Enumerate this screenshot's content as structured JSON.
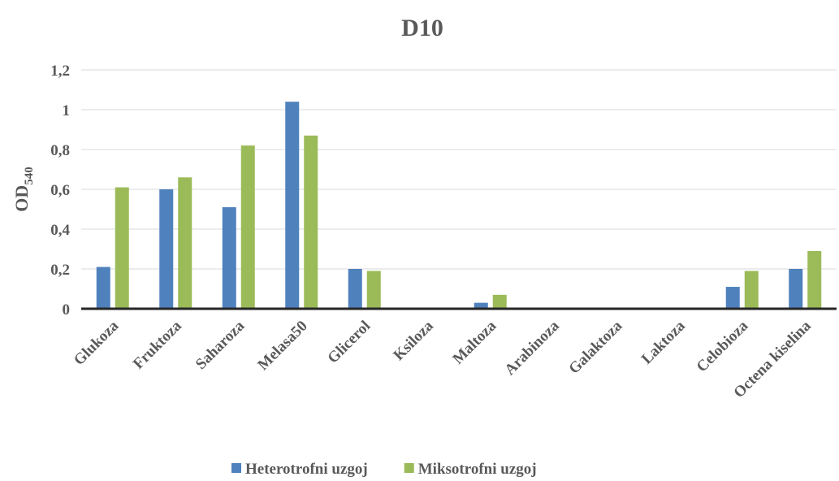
{
  "chart_data": {
    "type": "bar",
    "title": "D10",
    "y_label": "OD",
    "y_label_sub": "540",
    "categories": [
      "Glukoza",
      "Fruktoza",
      "Saharoza",
      "Melasa50",
      "Glicerol",
      "Ksiloza",
      "Maltoza",
      "Arabinoza",
      "Galaktoza",
      "Laktoza",
      "Celobioza",
      "Octena kiselina"
    ],
    "series": [
      {
        "name": "Heterotrofni uzgoj",
        "color": "#4f81bd",
        "values": [
          0.21,
          0.6,
          0.51,
          1.04,
          0.2,
          0,
          0.03,
          0,
          0,
          0,
          0.11,
          0.2
        ]
      },
      {
        "name": "Miksotrofni uzgoj",
        "color": "#9bbb59",
        "values": [
          0.61,
          0.66,
          0.82,
          0.87,
          0.19,
          0,
          0.07,
          0,
          0,
          0,
          0.19,
          0.29
        ]
      }
    ],
    "ylim": [
      0,
      1.2
    ],
    "yticks": [
      0,
      {
        "value": 0.2,
        "label": "0,2"
      },
      {
        "value": 0.4,
        "label": "0,4"
      },
      {
        "value": 0.6,
        "label": "0,6"
      },
      {
        "value": 0.8,
        "label": "0,8"
      },
      1,
      {
        "value": 1.2,
        "label": "1,2"
      }
    ],
    "grid": true,
    "legend": "bottom"
  }
}
